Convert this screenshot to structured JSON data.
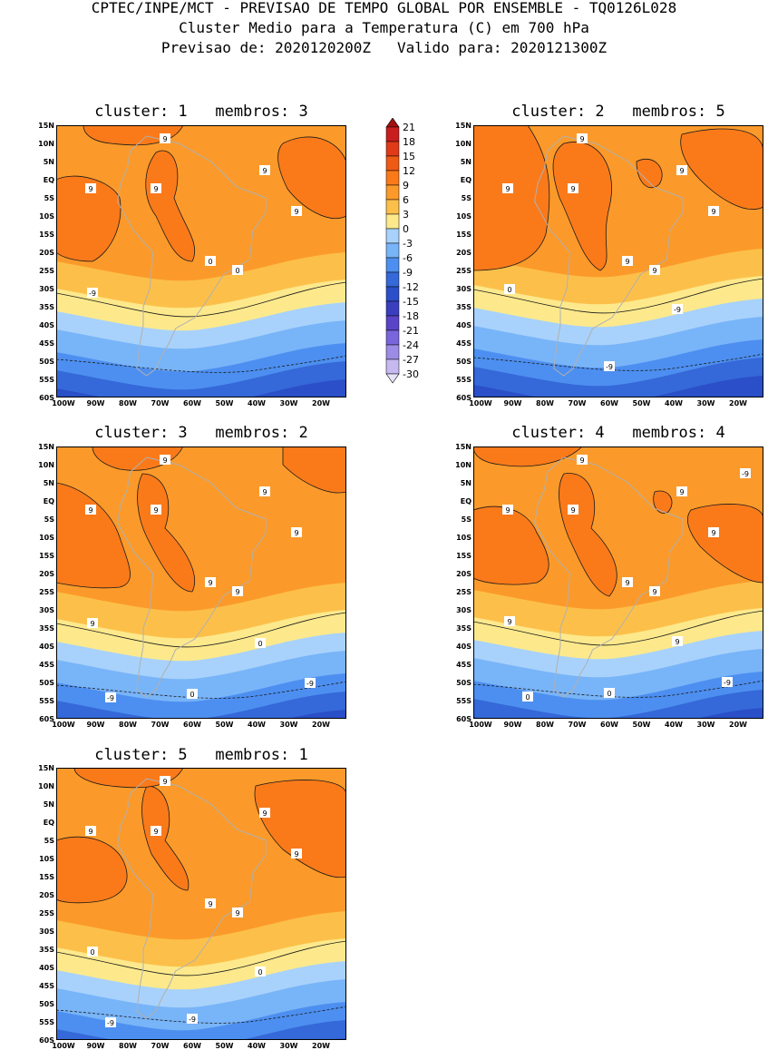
{
  "header": {
    "line1": "CPTEC/INPE/MCT - PREVISAO DE TEMPO GLOBAL POR ENSEMBLE - TQ0126L028",
    "line2": "Cluster Medio para a Temperatura (C) em 700 hPa",
    "line3": "Previsao de: 2020120200Z   Valido para: 2020121300Z"
  },
  "axes": {
    "lat_ticks": [
      "15N",
      "10N",
      "5N",
      "EQ",
      "5S",
      "10S",
      "15S",
      "20S",
      "25S",
      "30S",
      "35S",
      "40S",
      "45S",
      "50S",
      "55S",
      "60S"
    ],
    "lon_ticks": [
      "100W",
      "90W",
      "80W",
      "70W",
      "60W",
      "50W",
      "40W",
      "30W",
      "20W"
    ]
  },
  "panels": [
    {
      "title": "cluster: 1   membros: 3",
      "contour_labels": [
        "9",
        "9",
        "9",
        "9",
        "9",
        "0",
        "0",
        "-9"
      ]
    },
    {
      "title": "cluster: 2   membros: 5",
      "contour_labels": [
        "9",
        "9",
        "9",
        "9",
        "9",
        "9",
        "9",
        "0",
        "-9",
        "-9"
      ]
    },
    {
      "title": "cluster: 3   membros: 2",
      "contour_labels": [
        "9",
        "9",
        "9",
        "9",
        "9",
        "9",
        "9",
        "9",
        "0",
        "0",
        "-9",
        "-9"
      ]
    },
    {
      "title": "cluster: 4   membros: 4",
      "contour_labels": [
        "9",
        "9",
        "9",
        "9",
        "9",
        "9",
        "9",
        "9",
        "9",
        "0",
        "0",
        "-9",
        "-9"
      ]
    },
    {
      "title": "cluster: 5   membros: 1",
      "contour_labels": [
        "9",
        "9",
        "9",
        "9",
        "9",
        "9",
        "9",
        "0",
        "0",
        "-9",
        "-9"
      ]
    }
  ],
  "colorbar": {
    "levels": [
      "21",
      "18",
      "15",
      "12",
      "9",
      "6",
      "3",
      "0",
      "-3",
      "-6",
      "-9",
      "-12",
      "-15",
      "-18",
      "-21",
      "-24",
      "-27",
      "-30"
    ],
    "colors": [
      "#a01010",
      "#c81e1e",
      "#e03a18",
      "#ef5a14",
      "#fa7a1a",
      "#fb9a2a",
      "#fcc04a",
      "#fde98c",
      "#a8d2fb",
      "#78b4f8",
      "#4d8ff0",
      "#3568d8",
      "#2a4fc8",
      "#3a3fbf",
      "#5a45c8",
      "#7a66dc",
      "#9d8ce6",
      "#c6b9f0",
      "#e8e2fa"
    ]
  },
  "map_colors": {
    "land": "#b0b0b0",
    "contour": "#1a1a1a"
  }
}
